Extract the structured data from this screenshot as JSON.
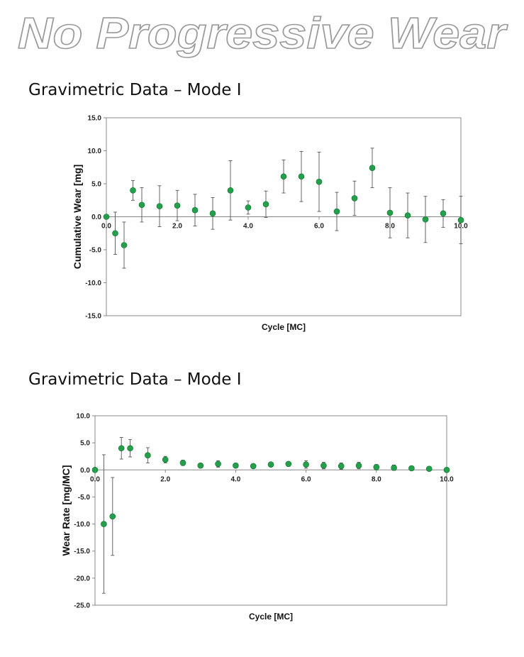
{
  "slide": {
    "title": "No Progressive Wear"
  },
  "sections": [
    {
      "heading": "Gravimetric Data – Mode I"
    },
    {
      "heading": "Gravimetric Data – Mode I"
    }
  ],
  "colors": {
    "marker": "#22a04a",
    "marker_stroke": "#0f6b2e",
    "error_bar": "#555555",
    "axis": "#888888",
    "title_fill": "#ffffff",
    "title_stroke": "#9a9a9a"
  },
  "chart_data": [
    {
      "type": "scatter",
      "title": "",
      "xlabel": "Cycle [MC]",
      "ylabel": "Cumulative Wear [mg]",
      "xlim": [
        0,
        10
      ],
      "ylim": [
        -15,
        15
      ],
      "x_ticks": [
        "0.0",
        "2.0",
        "4.0",
        "6.0",
        "8.0",
        "10.0"
      ],
      "y_ticks": [
        "15.0",
        "10.0",
        "5.0",
        "0.0",
        "-5.0",
        "-10.0",
        "-15.0"
      ],
      "error_bars": true,
      "grid": false,
      "legend": "none",
      "points": [
        {
          "x": 0.0,
          "y": 0.0,
          "err": 0.0
        },
        {
          "x": 0.25,
          "y": -2.5,
          "err": 3.2
        },
        {
          "x": 0.5,
          "y": -4.3,
          "err": 3.5
        },
        {
          "x": 0.75,
          "y": 4.0,
          "err": 1.5
        },
        {
          "x": 1.0,
          "y": 1.8,
          "err": 2.6
        },
        {
          "x": 1.5,
          "y": 1.6,
          "err": 3.1
        },
        {
          "x": 2.0,
          "y": 1.7,
          "err": 2.3
        },
        {
          "x": 2.5,
          "y": 1.0,
          "err": 2.4
        },
        {
          "x": 3.0,
          "y": 0.5,
          "err": 2.4
        },
        {
          "x": 3.5,
          "y": 4.0,
          "err": 4.5
        },
        {
          "x": 4.0,
          "y": 1.4,
          "err": 1.0
        },
        {
          "x": 4.5,
          "y": 1.9,
          "err": 2.0
        },
        {
          "x": 5.0,
          "y": 6.1,
          "err": 2.5
        },
        {
          "x": 5.5,
          "y": 6.1,
          "err": 3.8
        },
        {
          "x": 6.0,
          "y": 5.3,
          "err": 4.5
        },
        {
          "x": 6.5,
          "y": 0.8,
          "err": 2.9
        },
        {
          "x": 7.0,
          "y": 2.8,
          "err": 2.6
        },
        {
          "x": 7.5,
          "y": 7.4,
          "err": 3.0
        },
        {
          "x": 8.0,
          "y": 0.6,
          "err": 3.8
        },
        {
          "x": 8.5,
          "y": 0.2,
          "err": 3.4
        },
        {
          "x": 9.0,
          "y": -0.4,
          "err": 3.5
        },
        {
          "x": 9.5,
          "y": 0.5,
          "err": 2.1
        },
        {
          "x": 10.0,
          "y": -0.5,
          "err": 3.6
        }
      ]
    },
    {
      "type": "scatter",
      "title": "",
      "xlabel": "Cycle [MC]",
      "ylabel": "Wear Rate [mg/MC]",
      "xlim": [
        0,
        10
      ],
      "ylim": [
        -25,
        10
      ],
      "x_ticks": [
        "0.0",
        "2.0",
        "4.0",
        "6.0",
        "8.0",
        "10.0"
      ],
      "y_ticks": [
        "10.0",
        "5.0",
        "0.0",
        "-5.0",
        "-10.0",
        "-15.0",
        "-20.0",
        "-25.0"
      ],
      "error_bars": true,
      "grid": false,
      "legend": "none",
      "points": [
        {
          "x": 0.0,
          "y": 0.0,
          "err": 0.0
        },
        {
          "x": 0.25,
          "y": -10.0,
          "err": 12.8
        },
        {
          "x": 0.5,
          "y": -8.6,
          "err": 7.2
        },
        {
          "x": 0.75,
          "y": 4.0,
          "err": 2.0
        },
        {
          "x": 1.0,
          "y": 4.0,
          "err": 1.6
        },
        {
          "x": 1.5,
          "y": 2.7,
          "err": 1.4
        },
        {
          "x": 2.0,
          "y": 1.9,
          "err": 0.6
        },
        {
          "x": 2.5,
          "y": 1.3,
          "err": 0.5
        },
        {
          "x": 3.0,
          "y": 0.8,
          "err": 0.4
        },
        {
          "x": 3.5,
          "y": 1.1,
          "err": 0.6
        },
        {
          "x": 4.0,
          "y": 0.8,
          "err": 0.3
        },
        {
          "x": 4.5,
          "y": 0.7,
          "err": 0.3
        },
        {
          "x": 5.0,
          "y": 1.0,
          "err": 0.3
        },
        {
          "x": 5.5,
          "y": 1.1,
          "err": 0.4
        },
        {
          "x": 6.0,
          "y": 1.0,
          "err": 0.7
        },
        {
          "x": 6.5,
          "y": 0.8,
          "err": 0.6
        },
        {
          "x": 7.0,
          "y": 0.7,
          "err": 0.6
        },
        {
          "x": 7.5,
          "y": 0.8,
          "err": 0.6
        },
        {
          "x": 8.0,
          "y": 0.5,
          "err": 0.5
        },
        {
          "x": 8.5,
          "y": 0.4,
          "err": 0.5
        },
        {
          "x": 9.0,
          "y": 0.3,
          "err": 0.4
        },
        {
          "x": 9.5,
          "y": 0.2,
          "err": 0.3
        },
        {
          "x": 10.0,
          "y": 0.0,
          "err": 0.3
        }
      ]
    }
  ]
}
